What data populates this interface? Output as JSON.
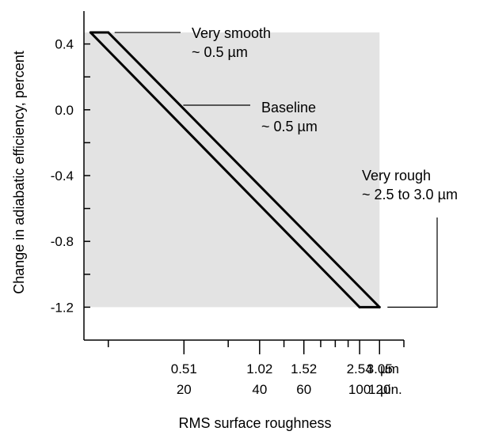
{
  "chart_data": {
    "type": "line",
    "title": "",
    "xlabel": "RMS surface roughness",
    "ylabel": "Change in adiabatic efficiency, percent",
    "ylim": [
      -1.4,
      0.6
    ],
    "y_ticks": [
      "0.4",
      "0.0",
      "-0.4",
      "-0.8",
      "-1.2"
    ],
    "y_tick_values": [
      0.4,
      0.0,
      -0.4,
      -0.8,
      -1.2
    ],
    "x_ticks_um": [
      "0.51",
      "1.02",
      "1.52",
      "2.54",
      "3.05"
    ],
    "x_ticks_uin": [
      "20",
      "40",
      "60",
      "100",
      "120"
    ],
    "x_tick_values_uin": [
      20,
      40,
      60,
      100,
      120
    ],
    "x_unit_um": "µm",
    "x_unit_uin": "µin.",
    "x_scale": "log",
    "xlim_uin": [
      8,
      150
    ],
    "x_minor_ticks_uin": [
      10,
      30,
      50,
      70,
      80,
      90,
      150
    ],
    "series": [
      {
        "x": [
          8.5,
          100
        ],
        "y": [
          0.47,
          -1.2
        ]
      },
      {
        "x": [
          10,
          120
        ],
        "y": [
          0.47,
          -1.2
        ]
      },
      {
        "x": [
          8.5,
          10
        ],
        "y": [
          0.47,
          0.47
        ]
      },
      {
        "x": [
          100,
          120
        ],
        "y": [
          -1.2,
          -1.2
        ]
      }
    ],
    "shaded_region": {
      "x": [
        8,
        120
      ],
      "y": [
        -1.2,
        0.47
      ]
    },
    "annotations": [
      {
        "lines": [
          "Very smooth",
          "~ 0.5 µm"
        ]
      },
      {
        "lines": [
          "Baseline",
          "~ 0.5 µm"
        ]
      },
      {
        "lines": [
          "Very rough",
          "~ 2.5 to 3.0 µm"
        ]
      }
    ],
    "grid": false,
    "colors": {
      "line": "#000000",
      "shade": "#e3e3e3"
    }
  }
}
